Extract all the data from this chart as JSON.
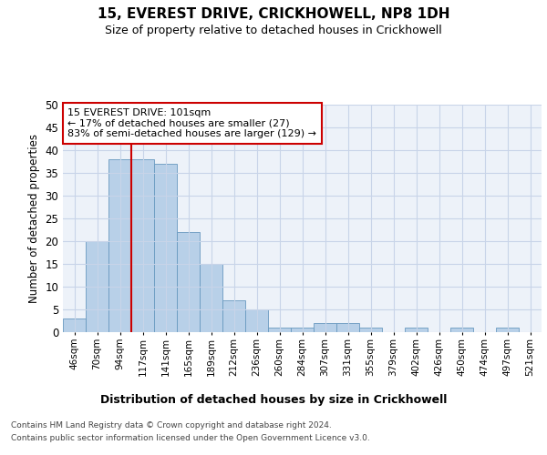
{
  "title1": "15, EVEREST DRIVE, CRICKHOWELL, NP8 1DH",
  "title2": "Size of property relative to detached houses in Crickhowell",
  "xlabel": "Distribution of detached houses by size in Crickhowell",
  "ylabel": "Number of detached properties",
  "bin_labels": [
    "46sqm",
    "70sqm",
    "94sqm",
    "117sqm",
    "141sqm",
    "165sqm",
    "189sqm",
    "212sqm",
    "236sqm",
    "260sqm",
    "284sqm",
    "307sqm",
    "331sqm",
    "355sqm",
    "379sqm",
    "402sqm",
    "426sqm",
    "450sqm",
    "474sqm",
    "497sqm",
    "521sqm"
  ],
  "bar_values": [
    3,
    20,
    38,
    38,
    37,
    22,
    15,
    7,
    5,
    1,
    1,
    2,
    2,
    1,
    0,
    1,
    0,
    1,
    0,
    1,
    0
  ],
  "bar_color": "#b8d0e8",
  "bar_edge_color": "#6899c0",
  "vline_color": "#cc0000",
  "annotation_text": "15 EVEREST DRIVE: 101sqm\n← 17% of detached houses are smaller (27)\n83% of semi-detached houses are larger (129) →",
  "annotation_box_color": "#ffffff",
  "annotation_box_edge": "#cc0000",
  "ylim": [
    0,
    50
  ],
  "yticks": [
    0,
    5,
    10,
    15,
    20,
    25,
    30,
    35,
    40,
    45,
    50
  ],
  "bg_color": "#edf2f9",
  "grid_color": "#c8d4e8",
  "footer1": "Contains HM Land Registry data © Crown copyright and database right 2024.",
  "footer2": "Contains public sector information licensed under the Open Government Licence v3.0."
}
